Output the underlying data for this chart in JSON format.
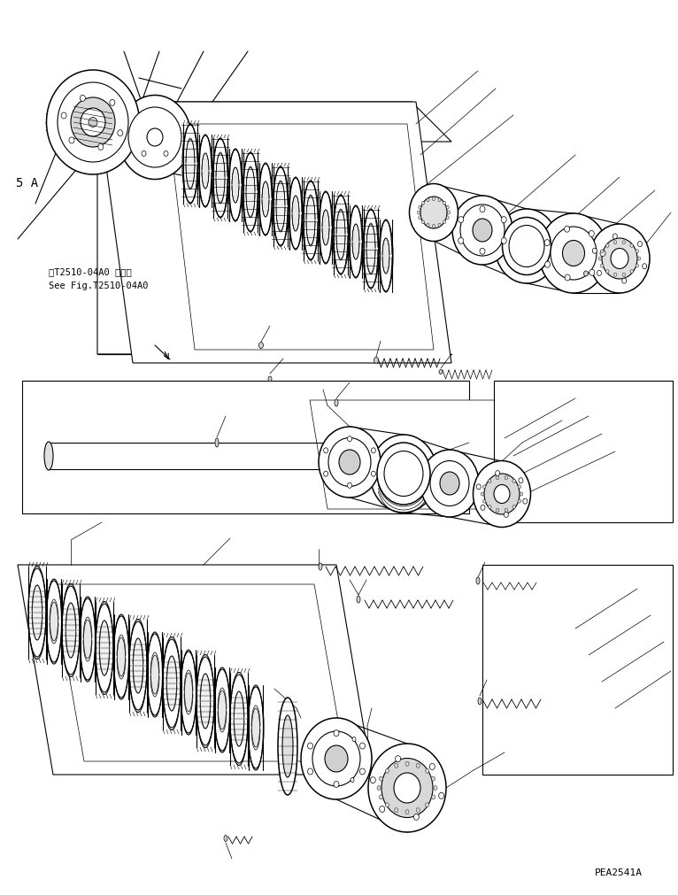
{
  "background_color": "#ffffff",
  "line_color": "#000000",
  "label_5a": "5 A",
  "label_ref1": "第T2510-04A0 図参照",
  "label_ref2": "See Fig.T2510-04A0",
  "watermark": "PEA2541A",
  "fig_width": 7.66,
  "fig_height": 10.11,
  "dpi": 100
}
